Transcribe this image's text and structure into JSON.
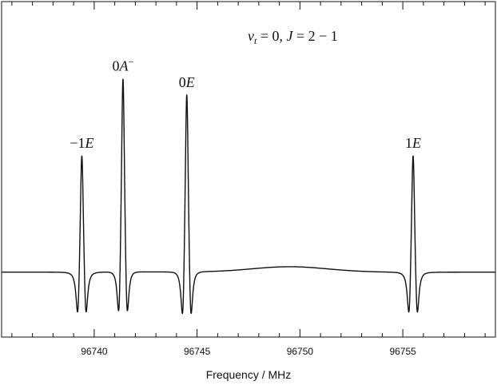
{
  "chart_data": {
    "type": "line",
    "title": "v_t = 0, J = 2 − 1",
    "title_parts": {
      "v": "v",
      "t": "t",
      "mid": " = 0, ",
      "J": "J",
      "rest": " = 2 − 1"
    },
    "xlabel": "Frequency / MHz",
    "ylabel": "",
    "xlim": [
      96735.5,
      96759.5
    ],
    "ylim": [
      -0.24,
      1.0
    ],
    "x_ticks": [
      96740,
      96745,
      96750,
      96755
    ],
    "x_tick_labels": [
      "96740",
      "96745",
      "96750",
      "96755"
    ],
    "x_minor_tick_step": 1,
    "grid": false,
    "baseline": 0.0,
    "bump": {
      "center": 96749.5,
      "height": 0.02,
      "width": 2.6
    },
    "peaks": [
      {
        "label": "−1E",
        "prefix": "−1",
        "italic": "E",
        "sup": "",
        "x": 96739.4,
        "height": 0.55,
        "dip": -0.24,
        "split": 0.38
      },
      {
        "label": "0A−",
        "prefix": "0",
        "italic": "A",
        "sup": "−",
        "x": 96741.4,
        "height": 0.86,
        "dip": -0.29,
        "split": 0.38
      },
      {
        "label": "0E",
        "prefix": "0",
        "italic": "E",
        "sup": "",
        "x": 96744.5,
        "height": 0.8,
        "dip": -0.29,
        "split": 0.38
      },
      {
        "label": "1E",
        "prefix": "1",
        "italic": "E",
        "sup": "",
        "x": 96755.5,
        "height": 0.55,
        "dip": -0.24,
        "split": 0.38
      }
    ],
    "series": [
      {
        "color": "#111111"
      }
    ]
  }
}
